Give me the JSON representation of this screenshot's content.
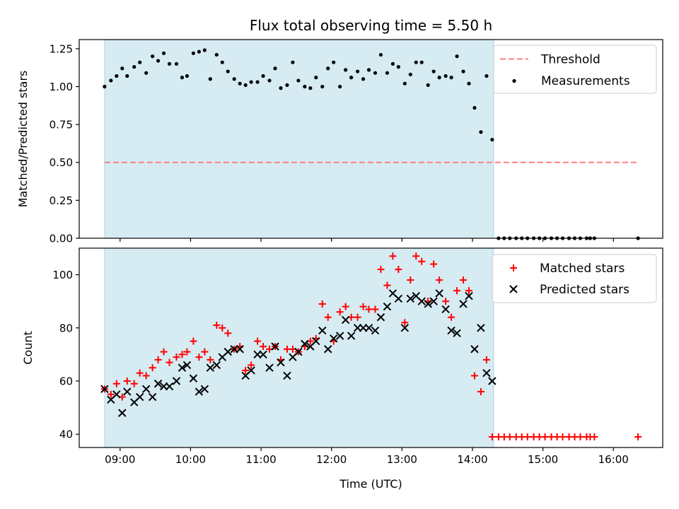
{
  "colors": {
    "span": "#add8e6",
    "threshold": "#ff7f7f",
    "measurement": "#000000",
    "matched": "#ff0000",
    "predicted": "#000000"
  },
  "chart_data": [
    {
      "type": "scatter",
      "title": "Flux total observing time = 5.50 h",
      "xlabel": "",
      "ylabel": "Matched/Predicted stars",
      "xlim": [
        8.42,
        16.7
      ],
      "ylim": [
        0.0,
        1.31
      ],
      "x_ticks": [
        9,
        10,
        11,
        12,
        13,
        14,
        15,
        16
      ],
      "x_tick_labels": [],
      "y_ticks": [
        0.0,
        0.25,
        0.5,
        0.75,
        1.0,
        1.25
      ],
      "y_tick_labels": [
        "0.00",
        "0.25",
        "0.50",
        "0.75",
        "1.00",
        "1.25"
      ],
      "observing_span": [
        8.78,
        14.3
      ],
      "series": [
        {
          "name": "Threshold",
          "style": "dashed-line",
          "x": [
            8.78,
            16.35
          ],
          "y": [
            0.5,
            0.5
          ]
        },
        {
          "name": "Measurements",
          "style": "dot",
          "x": [
            8.78,
            8.87,
            8.95,
            9.03,
            9.1,
            9.2,
            9.28,
            9.37,
            9.46,
            9.54,
            9.62,
            9.7,
            9.8,
            9.88,
            9.95,
            10.04,
            10.12,
            10.2,
            10.28,
            10.37,
            10.45,
            10.53,
            10.62,
            10.7,
            10.78,
            10.86,
            10.95,
            11.03,
            11.12,
            11.2,
            11.28,
            11.37,
            11.45,
            11.53,
            11.62,
            11.7,
            11.78,
            11.87,
            11.95,
            12.03,
            12.12,
            12.2,
            12.28,
            12.37,
            12.45,
            12.53,
            12.62,
            12.7,
            12.79,
            12.87,
            12.95,
            13.04,
            13.12,
            13.2,
            13.28,
            13.37,
            13.45,
            13.53,
            13.62,
            13.7,
            13.78,
            13.87,
            13.95,
            14.03,
            14.12,
            14.2,
            14.28,
            14.37,
            14.45,
            14.53,
            14.62,
            14.7,
            14.78,
            14.87,
            14.95,
            15.03,
            15.12,
            15.2,
            15.28,
            15.37,
            15.45,
            15.53,
            15.62,
            15.67,
            15.73,
            16.35
          ],
          "y": [
            1.0,
            1.04,
            1.07,
            1.12,
            1.07,
            1.13,
            1.16,
            1.09,
            1.2,
            1.17,
            1.22,
            1.15,
            1.15,
            1.06,
            1.07,
            1.22,
            1.23,
            1.24,
            1.05,
            1.21,
            1.16,
            1.1,
            1.05,
            1.02,
            1.01,
            1.03,
            1.03,
            1.07,
            1.04,
            1.12,
            0.99,
            1.01,
            1.16,
            1.04,
            1.0,
            0.99,
            1.06,
            1.0,
            1.12,
            1.16,
            1.0,
            1.11,
            1.06,
            1.1,
            1.05,
            1.11,
            1.09,
            1.21,
            1.09,
            1.15,
            1.13,
            1.02,
            1.08,
            1.16,
            1.16,
            1.01,
            1.1,
            1.06,
            1.07,
            1.06,
            1.2,
            1.1,
            1.02,
            0.86,
            0.7,
            1.07,
            0.65,
            0.0,
            0.0,
            0.0,
            0.0,
            0.0,
            0.0,
            0.0,
            0.0,
            0.0,
            0.0,
            0.0,
            0.0,
            0.0,
            0.0,
            0.0,
            0.0,
            0.0,
            0.0,
            0.0
          ]
        }
      ],
      "legend": {
        "placement": "top-right",
        "entries": [
          "Threshold",
          "Measurements"
        ]
      }
    },
    {
      "type": "scatter",
      "title": "",
      "xlabel": "Time (UTC)",
      "ylabel": "Count",
      "xlim": [
        8.42,
        16.7
      ],
      "ylim": [
        35,
        110
      ],
      "x_ticks": [
        9,
        10,
        11,
        12,
        13,
        14,
        15,
        16
      ],
      "x_tick_labels": [
        "09:00",
        "10:00",
        "11:00",
        "12:00",
        "13:00",
        "14:00",
        "15:00",
        "16:00"
      ],
      "y_ticks": [
        40,
        60,
        80,
        100
      ],
      "y_tick_labels": [
        "40",
        "60",
        "80",
        "100"
      ],
      "observing_span": [
        8.78,
        14.3
      ],
      "series": [
        {
          "name": "Matched stars",
          "style": "plus",
          "x": [
            8.78,
            8.87,
            8.95,
            9.03,
            9.1,
            9.2,
            9.28,
            9.37,
            9.46,
            9.54,
            9.62,
            9.7,
            9.8,
            9.88,
            9.95,
            10.04,
            10.12,
            10.2,
            10.28,
            10.37,
            10.45,
            10.53,
            10.62,
            10.7,
            10.78,
            10.86,
            10.95,
            11.03,
            11.12,
            11.2,
            11.28,
            11.37,
            11.45,
            11.53,
            11.62,
            11.7,
            11.78,
            11.87,
            11.95,
            12.03,
            12.12,
            12.2,
            12.28,
            12.37,
            12.45,
            12.53,
            12.62,
            12.7,
            12.79,
            12.87,
            12.95,
            13.04,
            13.12,
            13.2,
            13.28,
            13.37,
            13.45,
            13.53,
            13.62,
            13.7,
            13.78,
            13.87,
            13.95,
            14.03,
            14.12,
            14.2,
            14.28,
            14.37,
            14.45,
            14.53,
            14.62,
            14.7,
            14.78,
            14.87,
            14.95,
            15.03,
            15.12,
            15.2,
            15.28,
            15.37,
            15.45,
            15.53,
            15.62,
            15.67,
            15.73,
            16.35
          ],
          "y": [
            57,
            55,
            59,
            54,
            60,
            59,
            63,
            62,
            65,
            68,
            71,
            67,
            69,
            70,
            71,
            75,
            69,
            71,
            68,
            81,
            80,
            78,
            72,
            73,
            64,
            66,
            75,
            73,
            72,
            73,
            68,
            72,
            72,
            71,
            73,
            75,
            76,
            89,
            84,
            75,
            86,
            88,
            84,
            84,
            88,
            87,
            87,
            102,
            96,
            107,
            102,
            82,
            98,
            107,
            105,
            90,
            104,
            98,
            90,
            84,
            94,
            98,
            94,
            62,
            56,
            68,
            39,
            39,
            39,
            39,
            39,
            39,
            39,
            39,
            39,
            39,
            39,
            39,
            39,
            39,
            39,
            39,
            39,
            39,
            39,
            39
          ]
        },
        {
          "name": "Predicted stars",
          "style": "x",
          "x": [
            8.78,
            8.87,
            8.95,
            9.03,
            9.1,
            9.2,
            9.28,
            9.37,
            9.46,
            9.54,
            9.62,
            9.7,
            9.8,
            9.88,
            9.95,
            10.04,
            10.12,
            10.2,
            10.28,
            10.37,
            10.45,
            10.53,
            10.62,
            10.7,
            10.78,
            10.86,
            10.95,
            11.03,
            11.12,
            11.2,
            11.28,
            11.37,
            11.45,
            11.53,
            11.62,
            11.7,
            11.78,
            11.87,
            11.95,
            12.03,
            12.12,
            12.2,
            12.28,
            12.37,
            12.45,
            12.53,
            12.62,
            12.7,
            12.79,
            12.87,
            12.95,
            13.04,
            13.12,
            13.2,
            13.28,
            13.37,
            13.45,
            13.53,
            13.62,
            13.7,
            13.78,
            13.87,
            13.95,
            14.03,
            14.12,
            14.2,
            14.28
          ],
          "y": [
            57,
            53,
            55,
            48,
            56,
            52,
            54,
            57,
            54,
            59,
            58,
            58,
            60,
            65,
            66,
            61,
            56,
            57,
            65,
            66,
            69,
            71,
            72,
            72,
            62,
            64,
            70,
            70,
            65,
            73,
            67,
            62,
            69,
            71,
            74,
            73,
            75,
            79,
            72,
            76,
            77,
            83,
            77,
            80,
            80,
            80,
            79,
            84,
            88,
            93,
            91,
            80,
            91,
            92,
            90,
            89,
            90,
            93,
            87,
            79,
            78,
            89,
            92,
            72,
            80,
            63,
            60
          ]
        }
      ],
      "legend": {
        "placement": "top-right",
        "entries": [
          "Matched stars",
          "Predicted stars"
        ]
      }
    }
  ]
}
